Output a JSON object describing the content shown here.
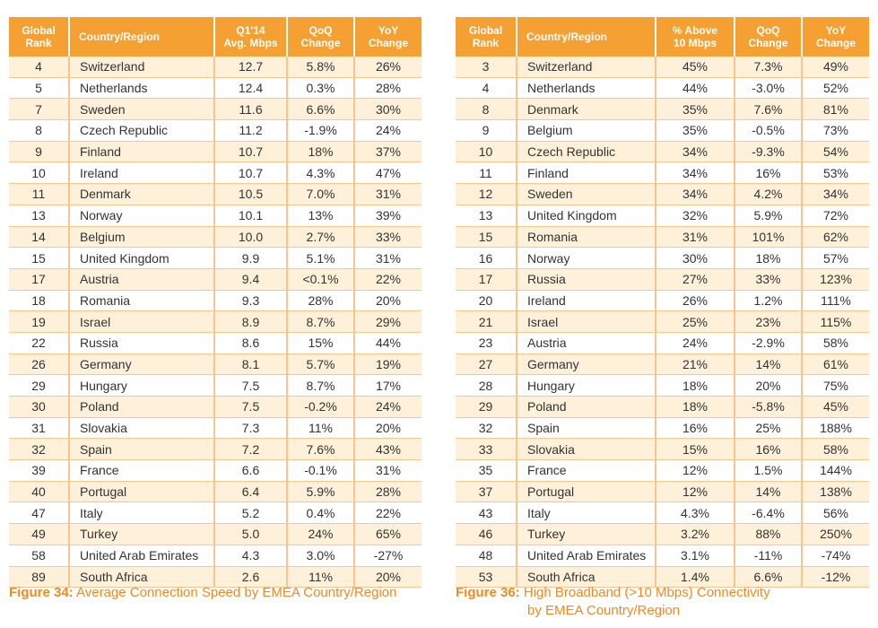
{
  "table1": {
    "headers": [
      "Global\nRank",
      "Country/Region",
      "Q1'14\nAvg. Mbps",
      "QoQ\nChange",
      "YoY\nChange"
    ],
    "rows": [
      [
        "4",
        "Switzerland",
        "12.7",
        "5.8%",
        "26%"
      ],
      [
        "5",
        "Netherlands",
        "12.4",
        "0.3%",
        "28%"
      ],
      [
        "7",
        "Sweden",
        "11.6",
        "6.6%",
        "30%"
      ],
      [
        "8",
        "Czech Republic",
        "11.2",
        "-1.9%",
        "24%"
      ],
      [
        "9",
        "Finland",
        "10.7",
        "18%",
        "37%"
      ],
      [
        "10",
        "Ireland",
        "10.7",
        "4.3%",
        "47%"
      ],
      [
        "11",
        "Denmark",
        "10.5",
        "7.0%",
        "31%"
      ],
      [
        "13",
        "Norway",
        "10.1",
        "13%",
        "39%"
      ],
      [
        "14",
        "Belgium",
        "10.0",
        "2.7%",
        "33%"
      ],
      [
        "15",
        "United Kingdom",
        "9.9",
        "5.1%",
        "31%"
      ],
      [
        "17",
        "Austria",
        "9.4",
        "<0.1%",
        "22%"
      ],
      [
        "18",
        "Romania",
        "9.3",
        "28%",
        "20%"
      ],
      [
        "19",
        "Israel",
        "8.9",
        "8.7%",
        "29%"
      ],
      [
        "22",
        "Russia",
        "8.6",
        "15%",
        "44%"
      ],
      [
        "26",
        "Germany",
        "8.1",
        "5.7%",
        "19%"
      ],
      [
        "29",
        "Hungary",
        "7.5",
        "8.7%",
        "17%"
      ],
      [
        "30",
        "Poland",
        "7.5",
        "-0.2%",
        "24%"
      ],
      [
        "31",
        "Slovakia",
        "7.3",
        "11%",
        "20%"
      ],
      [
        "32",
        "Spain",
        "7.2",
        "7.6%",
        "43%"
      ],
      [
        "39",
        "France",
        "6.6",
        "-0.1%",
        "31%"
      ],
      [
        "40",
        "Portugal",
        "6.4",
        "5.9%",
        "28%"
      ],
      [
        "47",
        "Italy",
        "5.2",
        "0.4%",
        "22%"
      ],
      [
        "49",
        "Turkey",
        "5.0",
        "24%",
        "65%"
      ],
      [
        "58",
        "United Arab Emirates",
        "4.3",
        "3.0%",
        "-27%"
      ],
      [
        "89",
        "South Africa",
        "2.6",
        "11%",
        "20%"
      ]
    ]
  },
  "table2": {
    "headers": [
      "Global\nRank",
      "Country/Region",
      "% Above\n10 Mbps",
      "QoQ\nChange",
      "YoY\nChange"
    ],
    "rows": [
      [
        "3",
        "Switzerland",
        "45%",
        "7.3%",
        "49%"
      ],
      [
        "4",
        "Netherlands",
        "44%",
        "-3.0%",
        "52%"
      ],
      [
        "8",
        "Denmark",
        "35%",
        "7.6%",
        "81%"
      ],
      [
        "9",
        "Belgium",
        "35%",
        "-0.5%",
        "73%"
      ],
      [
        "10",
        "Czech Republic",
        "34%",
        "-9.3%",
        "54%"
      ],
      [
        "11",
        "Finland",
        "34%",
        "16%",
        "53%"
      ],
      [
        "12",
        "Sweden",
        "34%",
        "4.2%",
        "34%"
      ],
      [
        "13",
        "United Kingdom",
        "32%",
        "5.9%",
        "72%"
      ],
      [
        "15",
        "Romania",
        "31%",
        "101%",
        "62%"
      ],
      [
        "16",
        "Norway",
        "30%",
        "18%",
        "57%"
      ],
      [
        "17",
        "Russia",
        "27%",
        "33%",
        "123%"
      ],
      [
        "20",
        "Ireland",
        "26%",
        "1.2%",
        "111%"
      ],
      [
        "21",
        "Israel",
        "25%",
        "23%",
        "115%"
      ],
      [
        "23",
        "Austria",
        "24%",
        "-2.9%",
        "58%"
      ],
      [
        "27",
        "Germany",
        "21%",
        "14%",
        "61%"
      ],
      [
        "28",
        "Hungary",
        "18%",
        "20%",
        "75%"
      ],
      [
        "29",
        "Poland",
        "18%",
        "-5.8%",
        "45%"
      ],
      [
        "32",
        "Spain",
        "16%",
        "25%",
        "188%"
      ],
      [
        "33",
        "Slovakia",
        "15%",
        "16%",
        "58%"
      ],
      [
        "35",
        "France",
        "12%",
        "1.5%",
        "144%"
      ],
      [
        "37",
        "Portugal",
        "12%",
        "14%",
        "138%"
      ],
      [
        "43",
        "Italy",
        "4.3%",
        "-6.4%",
        "56%"
      ],
      [
        "46",
        "Turkey",
        "3.2%",
        "88%",
        "250%"
      ],
      [
        "48",
        "United Arab Emirates",
        "3.1%",
        "-11%",
        "-74%"
      ],
      [
        "53",
        "South Africa",
        "1.4%",
        "6.6%",
        "-12%"
      ]
    ]
  },
  "captions": {
    "fig34_label": "Figure 34:",
    "fig34_text": " Average Connection Speed by EMEA Country/Region",
    "fig36_label": "Figure 36:",
    "fig36_text_line1": " High Broadband (>10 Mbps) Connectivity",
    "fig36_text_line2": "by EMEA Country/Region"
  },
  "colors": {
    "header_bg": "#f5a033",
    "row_alt_bg": "#fff1d9",
    "caption": "#f08a20"
  }
}
